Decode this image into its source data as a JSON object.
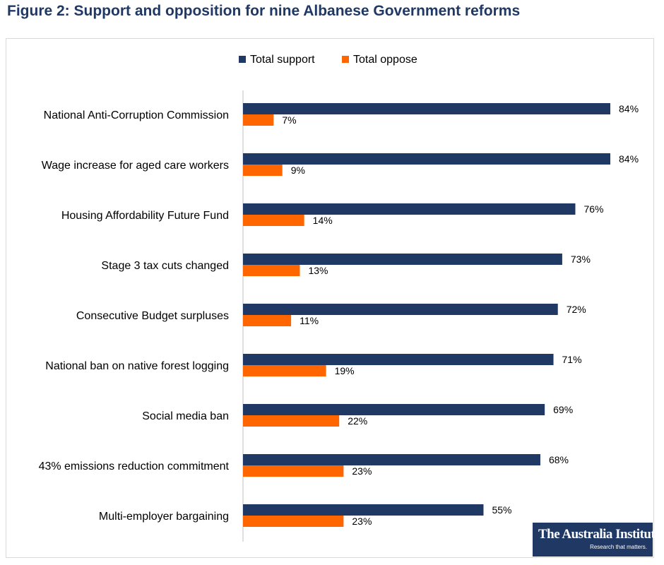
{
  "figure": {
    "title": "Figure 2: Support and opposition for nine Albanese Government reforms"
  },
  "logo": {
    "name": "The Australia Institute",
    "tagline": "Research that matters."
  },
  "chart_data": {
    "type": "bar",
    "orientation": "horizontal",
    "title": "",
    "xlabel": "",
    "ylabel": "",
    "xlim": [
      0,
      85
    ],
    "grid": false,
    "legend_position": "top",
    "categories": [
      "National Anti-Corruption Commission",
      "Wage increase for aged care workers",
      "Housing Affordability Future Fund",
      "Stage 3 tax cuts changed",
      "Consecutive Budget surpluses",
      "National ban on native forest logging",
      "Social media ban",
      "43% emissions reduction commitment",
      "Multi-employer bargaining"
    ],
    "series": [
      {
        "name": "Total support",
        "color": "#1f3864",
        "values": [
          84,
          84,
          76,
          73,
          72,
          71,
          69,
          68,
          55
        ],
        "labels": [
          "84%",
          "84%",
          "76%",
          "73%",
          "72%",
          "71%",
          "69%",
          "68%",
          "55%"
        ]
      },
      {
        "name": "Total oppose",
        "color": "#ff6600",
        "values": [
          7,
          9,
          14,
          13,
          11,
          19,
          22,
          23,
          23
        ],
        "labels": [
          "7%",
          "9%",
          "14%",
          "13%",
          "11%",
          "19%",
          "22%",
          "23%",
          "23%"
        ]
      }
    ]
  }
}
